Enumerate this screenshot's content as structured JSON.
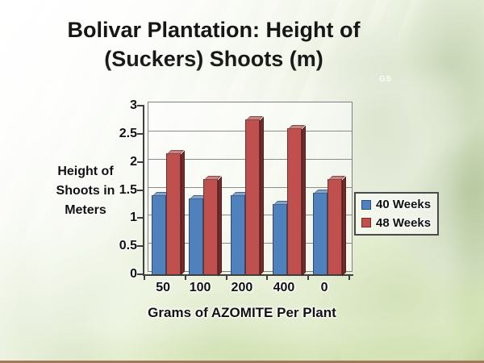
{
  "slide": {
    "title_line1": "Bolivar Plantation:  Height of",
    "title_line2": "(Suckers) Shoots (m)",
    "watermark": "GS"
  },
  "chart_data": {
    "type": "bar",
    "title": "Bolivar Plantation: Height of (Suckers) Shoots (m)",
    "categories": [
      "50",
      "100",
      "200",
      "400",
      "0"
    ],
    "series": [
      {
        "name": "40 Weeks",
        "color": "#4f81bd",
        "color_top": "#7fa5d3",
        "color_side": "#2c4d75",
        "values": [
          1.4,
          1.35,
          1.4,
          1.25,
          1.45
        ]
      },
      {
        "name": "48 Weeks",
        "color": "#c0504d",
        "color_top": "#d1807d",
        "color_side": "#782826",
        "values": [
          2.15,
          1.7,
          2.75,
          2.6,
          1.7
        ]
      }
    ],
    "xlabel": "Grams of AZOMITE Per Plant",
    "ylabel": "Height of Shoots in Meters",
    "ylabel_lines": [
      "Height of",
      "Shoots in",
      "Meters"
    ],
    "ylim": [
      0,
      3
    ],
    "ytick_step": 0.5,
    "yticks": [
      "3",
      "2.5",
      "2",
      "1.5",
      "1",
      "0.5",
      "0"
    ],
    "grid": true,
    "legend_position": "right",
    "style": "3d-clustered-column"
  }
}
